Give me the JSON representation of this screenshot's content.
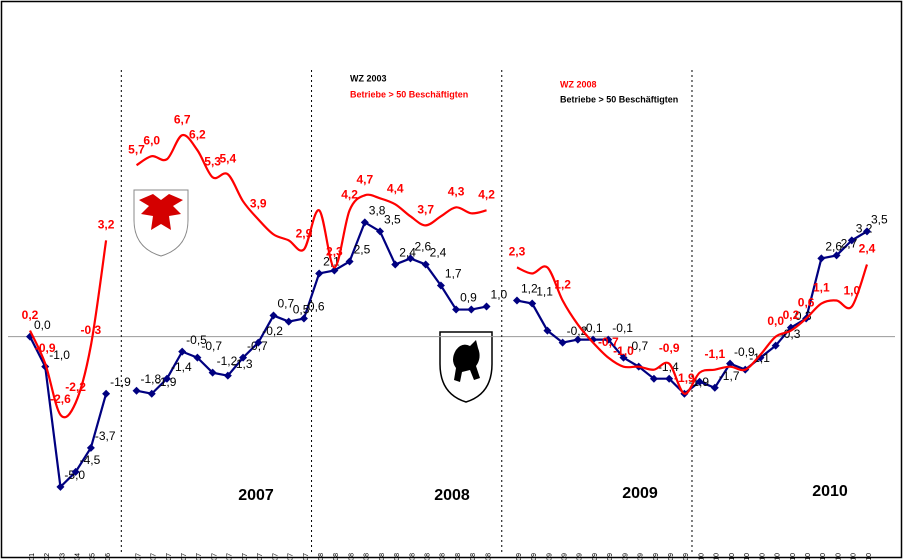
{
  "chart_data": {
    "type": "line",
    "categories": [
      "2001",
      "2002",
      "2003",
      "2004",
      "2005",
      "2006",
      null,
      "Jan 07",
      "Feb 07",
      "Mrz 07",
      "Apr 07",
      "Mai 07",
      "Jun 07",
      "Jul 07",
      "Aug 07",
      "Sep 07",
      "Okt 07",
      "Nov 07",
      "Dez 07",
      "Jan 08",
      "Feb 08",
      "Mrz 08",
      "Apr 08",
      "Mai 08",
      "Jun 08",
      "Jul 08",
      "Aug 08",
      "Sep 08",
      "Okt 08",
      "Nov 08",
      "Dez 08",
      null,
      "Jan 09",
      "Feb 09",
      "Mrz 09",
      "Apr 09",
      "Mai 09",
      "Jun 09",
      "Jul 09",
      "Aug 09",
      "Sep 09",
      "Okt 09",
      "Nov 09",
      "Dez 09",
      "Jan 10",
      "Feb 10",
      "Mrz 10",
      "Apr 10",
      "Mai 10",
      "Jun 10",
      "Jul 10",
      "Aug 10",
      "Sep 10",
      "Okt 10",
      "Nov 10",
      "Dez 10"
    ],
    "series": [
      {
        "color": "#000080",
        "marker": "diamond",
        "smooth": false,
        "values": [
          0.0,
          -1.0,
          -5.0,
          -4.5,
          -3.7,
          -1.9,
          null,
          -1.8,
          -1.9,
          -1.4,
          -0.5,
          -0.7,
          -1.2,
          -1.3,
          -0.7,
          -0.2,
          0.7,
          0.5,
          0.6,
          2.1,
          2.2,
          2.5,
          3.8,
          3.5,
          2.4,
          2.6,
          2.4,
          1.7,
          0.9,
          0.9,
          1.0,
          null,
          1.2,
          1.1,
          0.2,
          -0.2,
          -0.1,
          -0.1,
          -0.1,
          -0.7,
          -1.0,
          -1.4,
          -1.4,
          -1.9,
          -1.5,
          -1.7,
          -0.9,
          -1.1,
          -0.7,
          -0.3,
          0.3,
          0.6,
          2.6,
          2.7,
          3.2,
          3.5
        ],
        "value_labels": [
          "0,0",
          "-1,0",
          "-5,0",
          "-4,5",
          "-3,7",
          "-1,9",
          null,
          "-1,8",
          "-1,9",
          "-1,4",
          "-0,5",
          "-0,7",
          "-1,2",
          "-1,3",
          "-0,7",
          "-0,2",
          "0,7",
          "0,5",
          "0,6",
          "2,1",
          null,
          "2,5",
          "3,8",
          "3,5",
          "2,4",
          "2,6",
          "2,4",
          "1,7",
          "0,9",
          null,
          "1,0",
          null,
          "1,2",
          "1,1",
          null,
          "-0,2",
          "-0,1",
          null,
          "-0,1",
          "-0,7",
          null,
          "-1,4",
          null,
          "-1,9",
          null,
          "-1,7",
          "-0,9",
          "-1,1",
          null,
          "-0,3",
          "0,3",
          null,
          "2,6",
          "2,7",
          "3,2",
          "3,5"
        ]
      },
      {
        "color": "#ff0000",
        "marker": "none",
        "smooth": true,
        "values": [
          0.2,
          -0.9,
          -2.6,
          -2.2,
          -0.3,
          3.2,
          null,
          5.7,
          6.0,
          5.9,
          6.7,
          6.2,
          5.3,
          5.4,
          4.5,
          3.9,
          3.4,
          3.2,
          2.9,
          4.2,
          2.3,
          4.2,
          4.7,
          4.6,
          4.4,
          4.0,
          3.7,
          4.0,
          4.3,
          4.1,
          4.2,
          null,
          2.3,
          2.1,
          2.3,
          1.2,
          0.4,
          -0.2,
          -0.7,
          -1.0,
          -1.0,
          -1.1,
          -0.9,
          -1.9,
          -1.2,
          -1.1,
          -1.0,
          -1.1,
          -0.6,
          0.0,
          0.2,
          0.6,
          1.1,
          1.2,
          1.0,
          2.4
        ],
        "value_labels": [
          "0,2",
          "-0,9",
          "-2,6",
          "-2,2",
          "-0,3",
          "3,2",
          null,
          "5,7",
          "6,0",
          null,
          "6,7",
          "6,2",
          "5,3",
          "5,4",
          null,
          "3,9",
          null,
          null,
          "2,9",
          null,
          "2,3",
          "4,2",
          "4,7",
          null,
          "4,4",
          null,
          "3,7",
          null,
          "4,3",
          null,
          "4,2",
          null,
          "2,3",
          null,
          null,
          "1,2",
          null,
          null,
          "-0,7",
          "-1,0",
          null,
          null,
          "-0,9",
          "-1,9",
          null,
          "-1,1",
          null,
          null,
          null,
          "0,0",
          "0,2",
          "0,6",
          "1,1",
          null,
          "1,0",
          "2,4"
        ]
      }
    ],
    "ylim": [
      -6.1,
      9.2
    ],
    "annotations": {
      "wz2003": "WZ 2003",
      "wz2003_note": "Betriebe > 50 Beschäftigten",
      "wz2008": "WZ 2008",
      "wz2008_note": "Betriebe > 50 Beschäftigten",
      "y2007": "2007",
      "y2008": "2008",
      "y2009": "2009",
      "y2010": "2010"
    }
  }
}
